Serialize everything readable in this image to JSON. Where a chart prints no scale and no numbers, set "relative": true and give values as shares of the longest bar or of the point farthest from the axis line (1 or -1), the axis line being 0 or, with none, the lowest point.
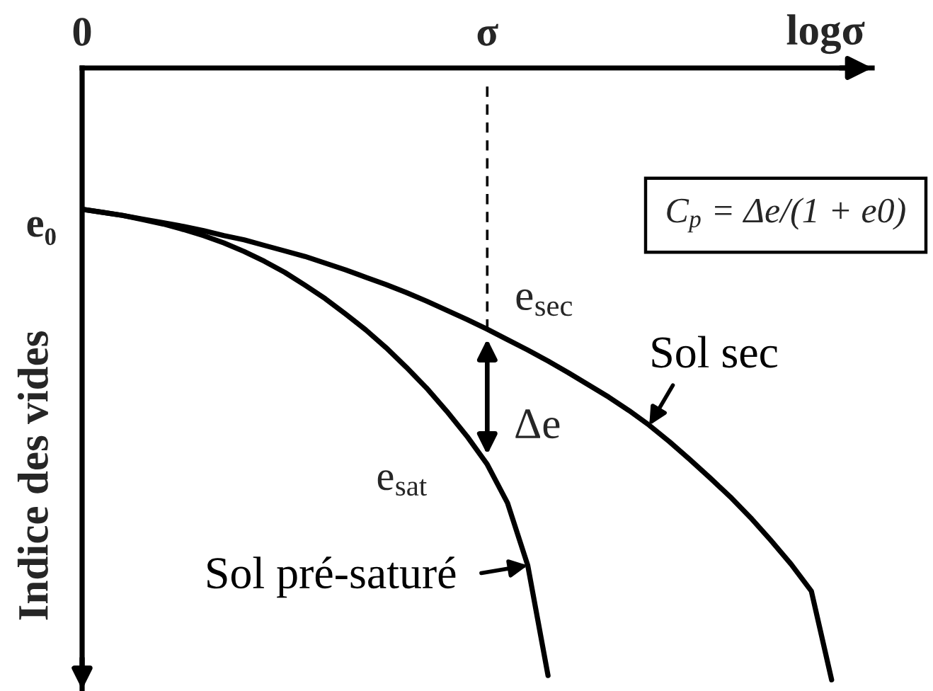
{
  "chart_data": {
    "type": "line",
    "relative": true,
    "line_style": "solid",
    "xlabel": "logσ",
    "ylabel": "Indice des vides",
    "categories": [
      "0",
      null,
      null,
      null,
      null,
      null,
      null,
      null,
      null,
      null,
      null,
      null,
      null,
      null,
      null,
      null,
      null,
      null,
      null,
      null,
      "σ",
      null,
      null,
      null,
      null,
      null,
      null,
      null,
      null,
      null,
      null,
      null,
      null,
      null,
      null,
      null,
      null,
      null,
      null,
      null
    ],
    "series": [
      {
        "name": "Sol sec",
        "color": "#000000",
        "values": [
          -0.231,
          -0.236,
          -0.241,
          -0.247,
          -0.253,
          -0.259,
          -0.266,
          -0.274,
          -0.281,
          -0.29,
          -0.299,
          -0.308,
          -0.319,
          -0.33,
          -0.342,
          -0.354,
          -0.367,
          -0.381,
          -0.396,
          -0.411,
          -0.427,
          -0.444,
          -0.461,
          -0.479,
          -0.498,
          -0.518,
          -0.538,
          -0.56,
          -0.584,
          -0.611,
          -0.64,
          -0.67,
          -0.701,
          -0.735,
          -0.772,
          -0.811,
          -0.855,
          -1.0,
          null,
          null
        ]
      },
      {
        "name": "Sol pré-saturé",
        "color": "#000000",
        "values": [
          -0.231,
          -0.236,
          -0.241,
          -0.248,
          -0.255,
          -0.264,
          -0.274,
          -0.286,
          -0.3,
          -0.316,
          -0.334,
          -0.355,
          -0.377,
          -0.402,
          -0.428,
          -0.457,
          -0.489,
          -0.523,
          -0.561,
          -0.602,
          -0.648,
          -0.711,
          -0.813,
          -0.993,
          null,
          null,
          null,
          null,
          null,
          null,
          null,
          null,
          null,
          null,
          null,
          null,
          null,
          null,
          null,
          null
        ]
      }
    ],
    "ref_lines": [
      {
        "axis": "x",
        "value": "σ",
        "line_style": "dashed",
        "color": "#000000"
      }
    ],
    "annotations": [
      "e₀",
      {
        "text": "e$_{sec}$",
        "x": "σ",
        "y": -0.427
      },
      "Δe",
      {
        "text": "e$_{sat}$",
        "x": "σ",
        "y": -0.648
      },
      "C$_{p}$ = Δe/(1 + e0)"
    ]
  }
}
